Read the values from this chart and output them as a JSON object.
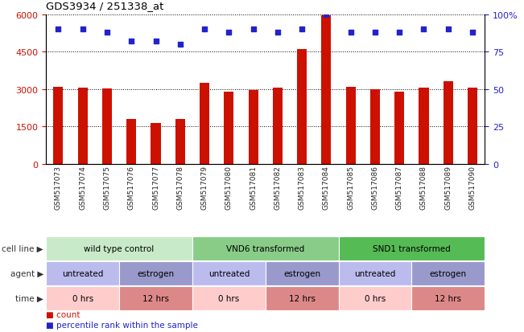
{
  "title": "GDS3934 / 251338_at",
  "samples": [
    "GSM517073",
    "GSM517074",
    "GSM517075",
    "GSM517076",
    "GSM517077",
    "GSM517078",
    "GSM517079",
    "GSM517080",
    "GSM517081",
    "GSM517082",
    "GSM517083",
    "GSM517084",
    "GSM517085",
    "GSM517086",
    "GSM517087",
    "GSM517088",
    "GSM517089",
    "GSM517090"
  ],
  "counts": [
    3100,
    3050,
    3030,
    1800,
    1650,
    1800,
    3250,
    2900,
    2950,
    3050,
    4600,
    5950,
    3100,
    3000,
    2900,
    3050,
    3300,
    3050
  ],
  "percentile_ranks": [
    90,
    90,
    88,
    82,
    82,
    80,
    90,
    88,
    90,
    88,
    90,
    100,
    88,
    88,
    88,
    90,
    90,
    88
  ],
  "bar_color": "#cc1100",
  "dot_color": "#2222cc",
  "ylim_left": [
    0,
    6000
  ],
  "ylim_right": [
    0,
    100
  ],
  "yticks_left": [
    0,
    1500,
    3000,
    4500,
    6000
  ],
  "yticks_right": [
    0,
    25,
    50,
    75,
    100
  ],
  "cell_line_groups": [
    {
      "label": "wild type control",
      "start": 0,
      "end": 6,
      "color": "#c8eac8"
    },
    {
      "label": "VND6 transformed",
      "start": 6,
      "end": 12,
      "color": "#88cc88"
    },
    {
      "label": "SND1 transformed",
      "start": 12,
      "end": 18,
      "color": "#55bb55"
    }
  ],
  "agent_groups": [
    {
      "label": "untreated",
      "start": 0,
      "end": 3,
      "color": "#bbbbee"
    },
    {
      "label": "estrogen",
      "start": 3,
      "end": 6,
      "color": "#9999cc"
    },
    {
      "label": "untreated",
      "start": 6,
      "end": 9,
      "color": "#bbbbee"
    },
    {
      "label": "estrogen",
      "start": 9,
      "end": 12,
      "color": "#9999cc"
    },
    {
      "label": "untreated",
      "start": 12,
      "end": 15,
      "color": "#bbbbee"
    },
    {
      "label": "estrogen",
      "start": 15,
      "end": 18,
      "color": "#9999cc"
    }
  ],
  "time_groups": [
    {
      "label": "0 hrs",
      "start": 0,
      "end": 3,
      "color": "#ffcccc"
    },
    {
      "label": "12 hrs",
      "start": 3,
      "end": 6,
      "color": "#dd8888"
    },
    {
      "label": "0 hrs",
      "start": 6,
      "end": 9,
      "color": "#ffcccc"
    },
    {
      "label": "12 hrs",
      "start": 9,
      "end": 12,
      "color": "#dd8888"
    },
    {
      "label": "0 hrs",
      "start": 12,
      "end": 15,
      "color": "#ffcccc"
    },
    {
      "label": "12 hrs",
      "start": 15,
      "end": 18,
      "color": "#dd8888"
    }
  ],
  "row_labels": [
    "cell line",
    "agent",
    "time"
  ],
  "bg_color": "#ffffff",
  "tick_label_color_left": "#cc1100",
  "tick_label_color_right": "#2222cc"
}
